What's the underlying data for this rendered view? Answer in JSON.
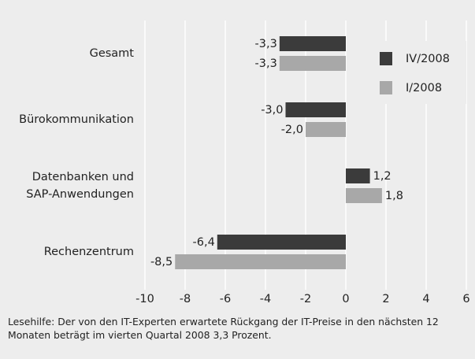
{
  "chart_data": {
    "type": "hbar",
    "categories": [
      "Gesamt",
      "Bürokommunikation",
      "Datenbanken und\nSAP-Anwendungen",
      "Rechenzentrum"
    ],
    "series": [
      {
        "name": "IV/2008",
        "color": "#3b3b3b",
        "values": [
          -3.3,
          -3.0,
          1.2,
          -6.4
        ],
        "value_labels": [
          "-3,3",
          "-3,0",
          "1,2",
          "-6,4"
        ]
      },
      {
        "name": "I/2008",
        "color": "#a8a8a8",
        "values": [
          -3.3,
          -2.0,
          1.8,
          -8.5
        ],
        "value_labels": [
          "-3,3",
          "-2,0",
          "1,8",
          "-8,5"
        ]
      }
    ],
    "xlim": [
      -10,
      6
    ],
    "xticks": [
      -10,
      -8,
      -6,
      -4,
      -2,
      0,
      2,
      4,
      6
    ],
    "grid": true,
    "legend": "top-right",
    "note": "Lesehilfe: Der von den IT-Experten erwartete Rückgang der IT-Preise in den nächsten 12 Monaten beträgt im vierten Quartal 2008 3,3 Prozent."
  }
}
